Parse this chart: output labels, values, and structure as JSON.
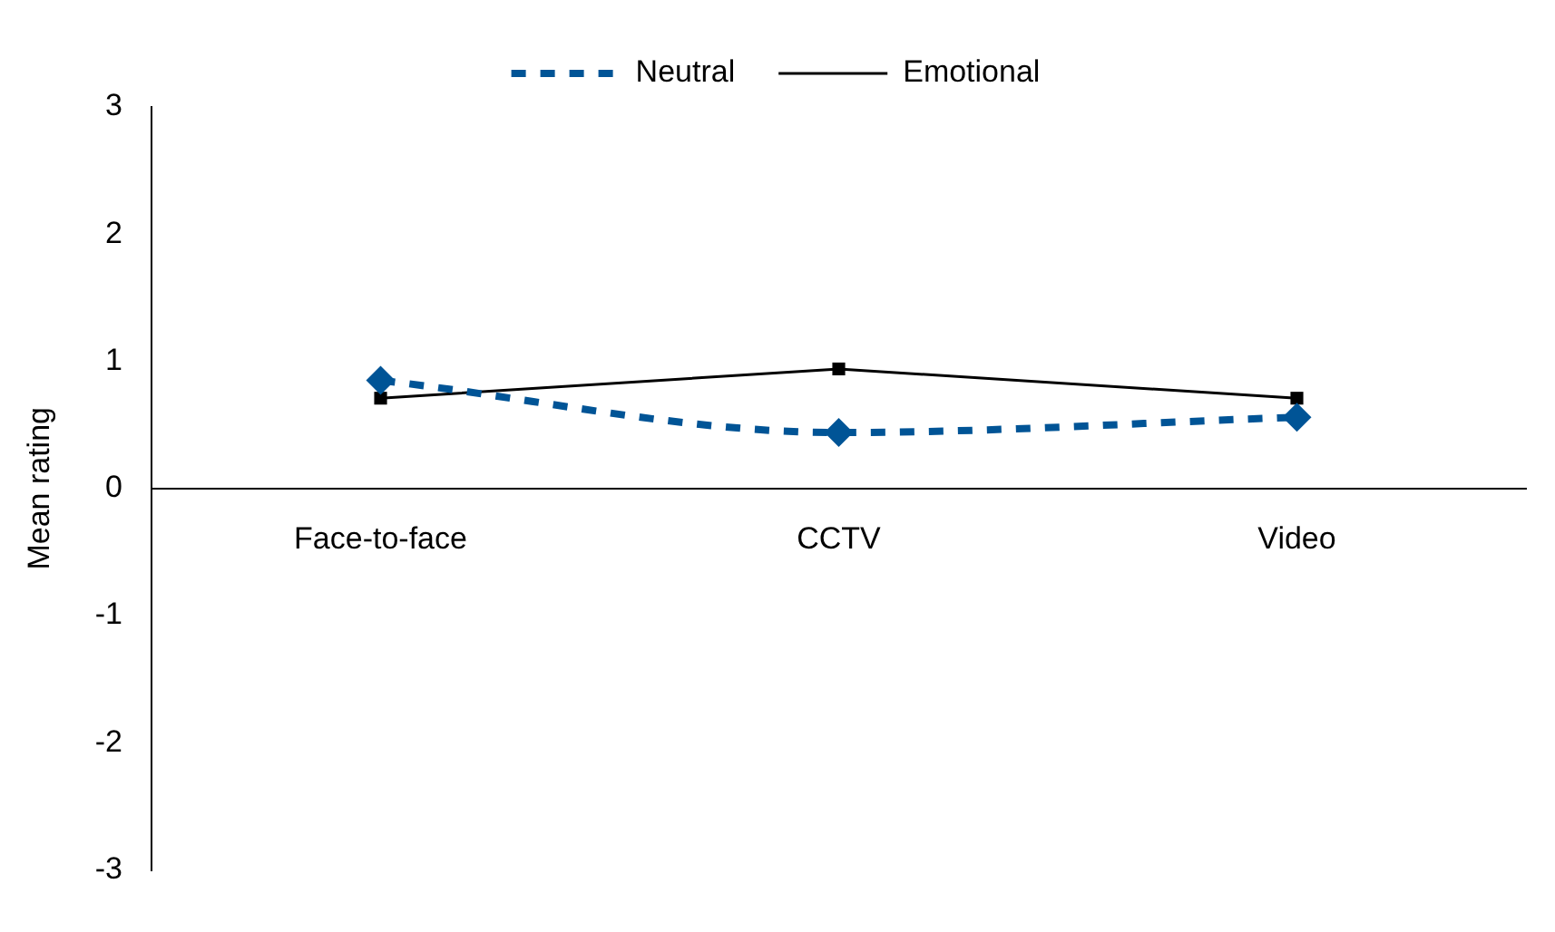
{
  "chart_data": {
    "type": "line",
    "ylabel": "Mean rating",
    "categories": [
      "Face-to-face",
      "CCTV",
      "Video"
    ],
    "series": [
      {
        "name": "Neutral",
        "color": "#005496",
        "values": [
          0.85,
          0.44,
          0.56
        ],
        "marker": "diamond",
        "line_style": "dashed"
      },
      {
        "name": "Emotional",
        "color": "#000000",
        "values": [
          0.71,
          0.94,
          0.71
        ],
        "marker": "square",
        "line_style": "solid"
      }
    ],
    "ylim": [
      -3,
      3
    ],
    "yticks": [
      -3,
      -2,
      -1,
      0,
      1,
      2,
      3
    ],
    "grid": false,
    "legend": "top"
  }
}
